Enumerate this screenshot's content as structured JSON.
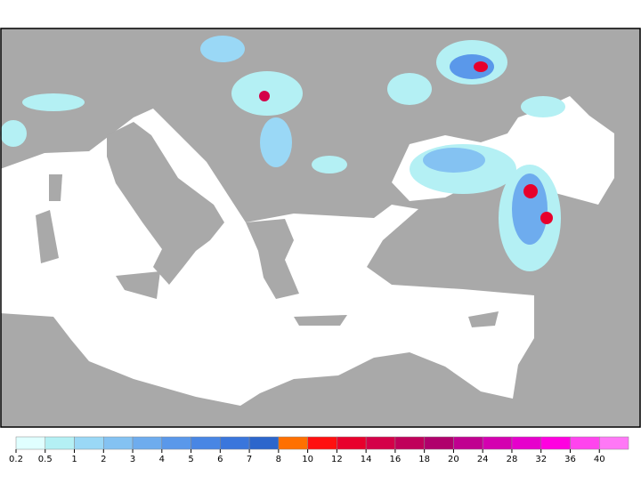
{
  "legend": {
    "ticks": [
      0.2,
      0.5,
      1,
      2,
      3,
      4,
      5,
      6,
      7,
      8,
      10,
      12,
      14,
      16,
      18,
      20,
      24,
      28,
      32,
      36,
      40
    ],
    "colors": [
      "#e0ffff",
      "#b4f0f4",
      "#9ad8f6",
      "#84c2f2",
      "#6eacee",
      "#5a98ea",
      "#4886e4",
      "#3a76dc",
      "#2c66cc",
      "#ff7000",
      "#ff1010",
      "#e8002c",
      "#d40048",
      "#c0005a",
      "#b0006c",
      "#c00090",
      "#d400b0",
      "#e600cc",
      "#ff00e0",
      "#ff44ee",
      "#ff78f6"
    ]
  }
}
